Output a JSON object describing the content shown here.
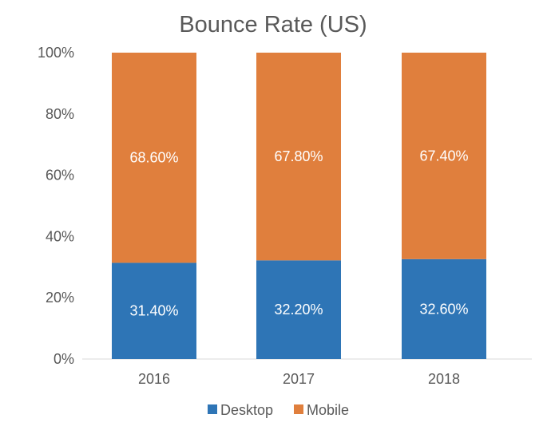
{
  "chart_data": {
    "type": "bar",
    "stacked": true,
    "title": "Bounce Rate (US)",
    "xlabel": "",
    "ylabel": "",
    "categories": [
      "2016",
      "2017",
      "2018"
    ],
    "series": [
      {
        "name": "Desktop",
        "color": "#2e75b6",
        "values": [
          31.4,
          32.2,
          32.6
        ],
        "labels": [
          "31.40%",
          "32.20%",
          "32.60%"
        ]
      },
      {
        "name": "Mobile",
        "color": "#e07f3d",
        "values": [
          68.6,
          67.8,
          67.4
        ],
        "labels": [
          "68.60%",
          "67.80%",
          "67.40%"
        ]
      }
    ],
    "ylim": [
      0,
      100
    ],
    "yticks": [
      "0%",
      "20%",
      "40%",
      "60%",
      "80%",
      "100%"
    ],
    "grid": false,
    "legend_position": "bottom"
  }
}
